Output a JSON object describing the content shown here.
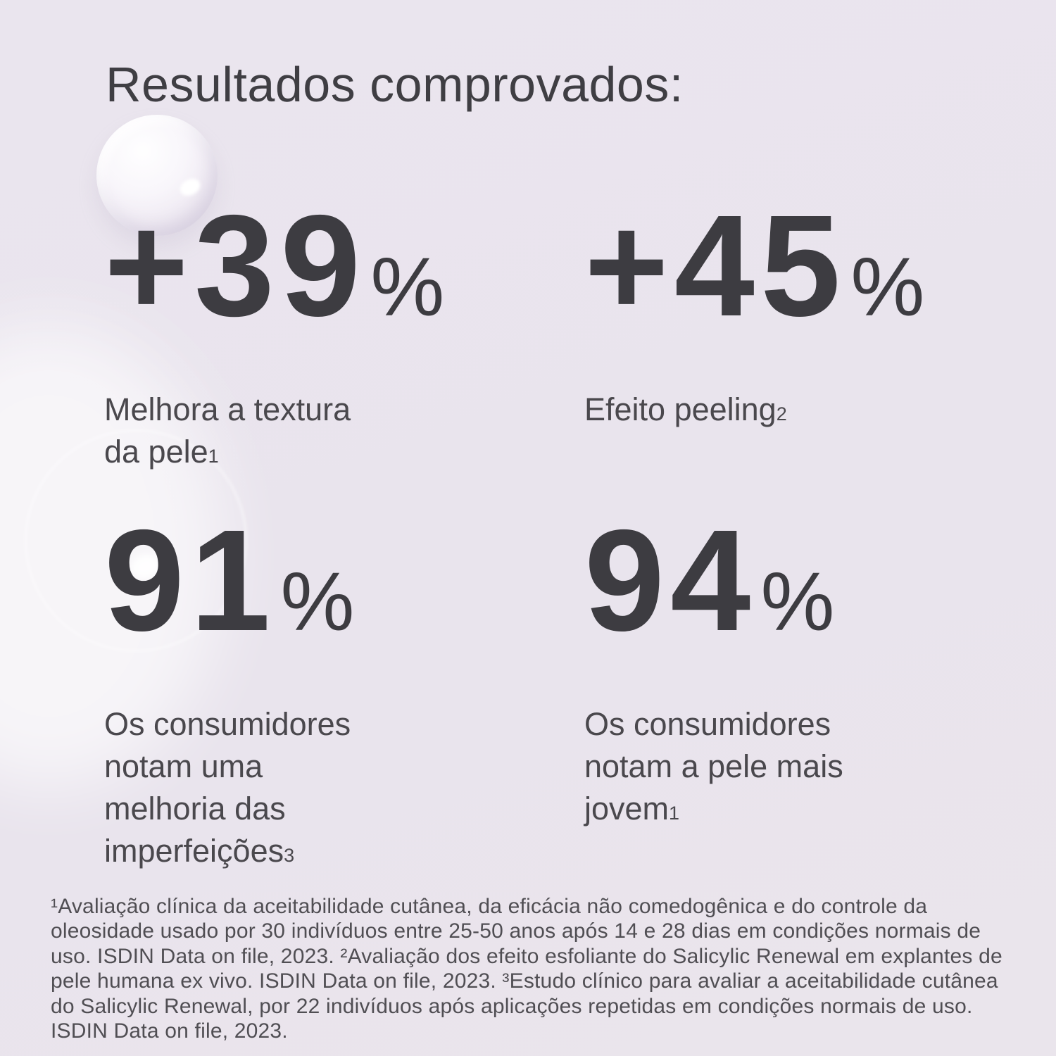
{
  "colors": {
    "background": "#e9e4ed",
    "title": "#3f3e43",
    "stat_number": "#3d3c41",
    "stat_label": "#4a484d",
    "footnote": "#504e53"
  },
  "title": "Resultados comprovados:",
  "percent_sign": "%",
  "stats": [
    {
      "value": "+39",
      "label": "Melhora a textura da pele",
      "ref": "1"
    },
    {
      "value": "+45",
      "label": "Efeito peeling",
      "ref": "2"
    },
    {
      "value": "91",
      "label": "Os consumidores notam uma melhoria das imperfeições",
      "ref": "3"
    },
    {
      "value": "94",
      "label": "Os consumidores notam a pele mais jovem",
      "ref": "1"
    }
  ],
  "footnote": "¹Avaliação clínica da aceitabilidade cutânea, da eficácia não comedogênica e do controle da oleosidade usado por 30 indivíduos entre 25-50 anos após 14 e 28 dias em condições normais de uso. ISDIN Data on file, 2023. ²Avaliação dos efeito esfoliante do Salicylic Renewal em explantes de pele humana ex vivo. ISDIN Data on file, 2023. ³Estudo clínico para avaliar a aceitabilidade cutânea do Salicylic Renewal, por 22 indivíduos após aplicações repetidas em condições normais de uso. ISDIN Data on file, 2023.",
  "decorations": {
    "top_droplet": "gel-bubble",
    "left_blob": "soft-white-blob",
    "ring": "faint-bubble-ring",
    "glint": "specular-highlight"
  }
}
